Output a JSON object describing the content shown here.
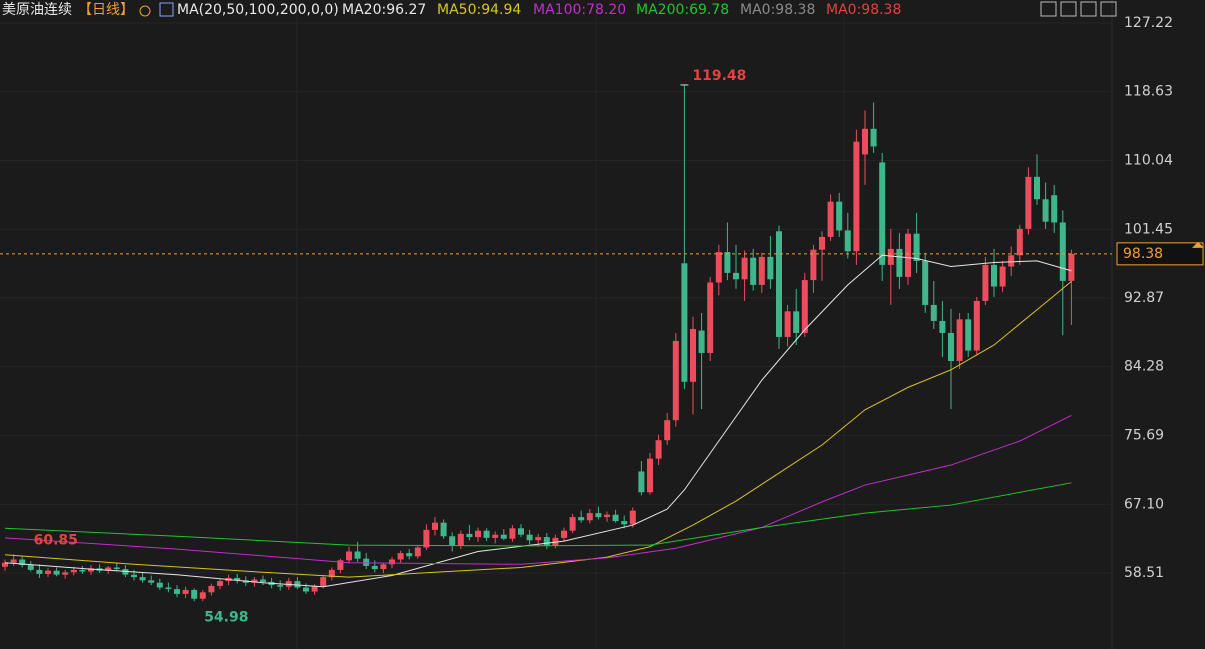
{
  "header": {
    "symbol": "美原油连续",
    "period": "【日线】",
    "ma_params": "MA(20,50,100,200,0,0)",
    "ma_readings": [
      {
        "text": "MA20:96.27",
        "color": "#e6e6e6"
      },
      {
        "text": "MA50:94.94",
        "color": "#d9c51c"
      },
      {
        "text": "MA100:78.20",
        "color": "#c42ccf"
      },
      {
        "text": "MA200:69.78",
        "color": "#22c42a"
      },
      {
        "text": "MA0:98.38",
        "color": "#8a8a8a"
      },
      {
        "text": "MA0:98.38",
        "color": "#e2433f"
      }
    ]
  },
  "chart_data": {
    "type": "candlestick",
    "ylim": [
      49.02,
      130.09
    ],
    "yticks": [
      127.22,
      118.63,
      110.04,
      101.45,
      92.87,
      84.28,
      75.69,
      {
        "value": 67.1,
        "label": "67.10"
      },
      58.51
    ],
    "up_color": "#ec4d5c",
    "down_color": "#3fb68b",
    "last_price": 98.38,
    "labels": {
      "max": 119.48,
      "start": 60.85,
      "min": 54.98
    },
    "candles": [
      [
        59.3,
        60.2,
        58.8,
        59.8
      ],
      [
        59.8,
        60.85,
        59.4,
        60.2
      ],
      [
        60.2,
        60.6,
        59.2,
        59.5
      ],
      [
        59.5,
        60.0,
        58.7,
        58.9
      ],
      [
        58.9,
        59.6,
        57.9,
        58.4
      ],
      [
        58.4,
        59.1,
        58.0,
        58.8
      ],
      [
        58.8,
        59.2,
        58.1,
        58.3
      ],
      [
        58.3,
        58.9,
        57.8,
        58.6
      ],
      [
        58.6,
        59.3,
        58.2,
        58.9
      ],
      [
        58.9,
        59.4,
        58.4,
        58.7
      ],
      [
        58.7,
        59.5,
        58.3,
        59.1
      ],
      [
        59.1,
        59.6,
        58.5,
        58.8
      ],
      [
        58.8,
        59.4,
        58.4,
        59.2
      ],
      [
        59.2,
        59.8,
        58.7,
        59.0
      ],
      [
        59.0,
        59.5,
        58.0,
        58.3
      ],
      [
        58.3,
        58.9,
        57.6,
        58.0
      ],
      [
        58.0,
        58.6,
        57.3,
        57.6
      ],
      [
        57.6,
        58.2,
        57.0,
        57.3
      ],
      [
        57.3,
        57.8,
        56.4,
        56.7
      ],
      [
        56.7,
        57.3,
        56.1,
        56.5
      ],
      [
        56.5,
        57.0,
        55.5,
        55.9
      ],
      [
        55.9,
        56.8,
        55.4,
        56.4
      ],
      [
        56.4,
        56.6,
        54.98,
        55.3
      ],
      [
        55.3,
        56.4,
        55.0,
        56.1
      ],
      [
        56.1,
        57.2,
        55.7,
        56.9
      ],
      [
        56.9,
        57.8,
        56.5,
        57.5
      ],
      [
        57.5,
        58.3,
        57.0,
        57.9
      ],
      [
        57.9,
        58.4,
        57.2,
        57.6
      ],
      [
        57.6,
        58.1,
        56.9,
        57.3
      ],
      [
        57.3,
        58.0,
        56.8,
        57.7
      ],
      [
        57.7,
        58.2,
        57.0,
        57.4
      ],
      [
        57.4,
        57.9,
        56.6,
        57.0
      ],
      [
        57.0,
        57.6,
        56.3,
        56.8
      ],
      [
        56.8,
        57.9,
        56.4,
        57.5
      ],
      [
        57.5,
        58.0,
        56.5,
        56.7
      ],
      [
        56.7,
        57.2,
        55.9,
        56.2
      ],
      [
        56.2,
        57.1,
        55.8,
        56.9
      ],
      [
        56.9,
        58.3,
        56.6,
        58.0
      ],
      [
        58.0,
        59.2,
        57.6,
        58.9
      ],
      [
        58.9,
        60.3,
        58.5,
        60.1
      ],
      [
        60.1,
        61.8,
        59.7,
        61.2
      ],
      [
        61.2,
        62.4,
        59.9,
        60.3
      ],
      [
        60.3,
        61.0,
        59.0,
        59.4
      ],
      [
        59.4,
        60.1,
        58.6,
        59.0
      ],
      [
        59.0,
        59.8,
        58.5,
        59.6
      ],
      [
        59.6,
        60.5,
        59.1,
        60.2
      ],
      [
        60.2,
        61.3,
        59.8,
        61.0
      ],
      [
        61.0,
        61.5,
        60.2,
        60.6
      ],
      [
        60.6,
        62.0,
        60.3,
        61.7
      ],
      [
        61.7,
        64.6,
        61.4,
        63.9
      ],
      [
        63.9,
        65.5,
        63.2,
        64.8
      ],
      [
        64.8,
        65.2,
        62.8,
        63.1
      ],
      [
        63.1,
        63.6,
        61.2,
        61.9
      ],
      [
        61.9,
        63.8,
        61.5,
        63.4
      ],
      [
        63.4,
        64.5,
        62.6,
        63.0
      ],
      [
        63.0,
        64.2,
        62.4,
        63.8
      ],
      [
        63.8,
        64.1,
        62.5,
        62.9
      ],
      [
        62.9,
        63.7,
        62.2,
        63.3
      ],
      [
        63.3,
        64.0,
        62.6,
        62.8
      ],
      [
        62.8,
        64.5,
        62.4,
        64.1
      ],
      [
        64.1,
        64.6,
        63.0,
        63.3
      ],
      [
        63.3,
        63.9,
        62.1,
        62.6
      ],
      [
        62.6,
        63.4,
        61.8,
        63.0
      ],
      [
        63.0,
        63.5,
        61.5,
        61.9
      ],
      [
        61.9,
        63.3,
        61.6,
        62.9
      ],
      [
        62.9,
        64.2,
        62.5,
        63.8
      ],
      [
        63.8,
        65.9,
        63.5,
        65.5
      ],
      [
        65.5,
        66.3,
        64.8,
        65.1
      ],
      [
        65.1,
        66.5,
        64.7,
        66.0
      ],
      [
        66.0,
        66.8,
        65.2,
        65.5
      ],
      [
        65.5,
        66.2,
        64.9,
        65.8
      ],
      [
        65.8,
        66.4,
        64.8,
        65.0
      ],
      [
        65.0,
        65.7,
        64.1,
        64.6
      ],
      [
        64.6,
        66.7,
        64.2,
        66.3
      ],
      [
        71.2,
        72.5,
        68.2,
        68.6
      ],
      [
        68.6,
        73.5,
        68.3,
        72.8
      ],
      [
        72.8,
        75.8,
        72.0,
        75.1
      ],
      [
        75.1,
        78.5,
        74.5,
        77.6
      ],
      [
        77.6,
        88.5,
        76.8,
        87.5
      ],
      [
        97.2,
        119.48,
        81.5,
        82.4
      ],
      [
        82.4,
        90.5,
        78.3,
        89.0
      ],
      [
        88.8,
        91.0,
        79.0,
        86.0
      ],
      [
        86.0,
        95.5,
        85.0,
        94.8
      ],
      [
        94.8,
        99.5,
        93.2,
        98.6
      ],
      [
        98.6,
        102.3,
        95.1,
        96.0
      ],
      [
        96.0,
        99.5,
        94.0,
        95.2
      ],
      [
        95.2,
        98.8,
        92.5,
        97.9
      ],
      [
        97.9,
        99.0,
        93.8,
        94.5
      ],
      [
        94.5,
        98.5,
        93.5,
        98.0
      ],
      [
        98.0,
        100.6,
        94.0,
        95.2
      ],
      [
        101.2,
        101.9,
        86.5,
        88.0
      ],
      [
        88.0,
        92.0,
        86.8,
        91.2
      ],
      [
        91.2,
        94.0,
        87.0,
        88.5
      ],
      [
        88.5,
        96.0,
        88.0,
        95.1
      ],
      [
        95.1,
        99.5,
        93.5,
        98.9
      ],
      [
        98.9,
        101.2,
        95.0,
        100.5
      ],
      [
        100.5,
        105.8,
        100.0,
        104.9
      ],
      [
        104.9,
        106.0,
        100.5,
        101.3
      ],
      [
        101.3,
        103.5,
        97.8,
        98.7
      ],
      [
        98.7,
        113.9,
        97.0,
        112.4
      ],
      [
        110.8,
        116.3,
        107.0,
        114.0
      ],
      [
        114.0,
        117.3,
        111.0,
        111.8
      ],
      [
        109.8,
        111.0,
        95.0,
        97.0
      ],
      [
        97.0,
        101.5,
        92.0,
        99.0
      ],
      [
        99.0,
        101.0,
        94.0,
        95.5
      ],
      [
        95.5,
        101.5,
        94.5,
        100.9
      ],
      [
        100.9,
        103.5,
        96.0,
        97.5
      ],
      [
        97.5,
        98.5,
        91.0,
        92.0
      ],
      [
        92.0,
        95.0,
        89.0,
        90.0
      ],
      [
        90.0,
        92.5,
        85.5,
        88.5
      ],
      [
        88.5,
        91.5,
        79.0,
        85.0
      ],
      [
        85.0,
        91.0,
        84.0,
        90.2
      ],
      [
        90.2,
        91.0,
        85.5,
        86.3
      ],
      [
        86.3,
        93.0,
        85.8,
        92.5
      ],
      [
        92.5,
        98.0,
        92.0,
        97.0
      ],
      [
        97.0,
        99.0,
        93.0,
        94.3
      ],
      [
        94.3,
        97.5,
        93.6,
        96.8
      ],
      [
        96.8,
        99.3,
        95.6,
        98.2
      ],
      [
        98.2,
        102.0,
        97.0,
        101.5
      ],
      [
        101.5,
        109.2,
        100.8,
        108.0
      ],
      [
        108.0,
        110.8,
        104.5,
        105.2
      ],
      [
        105.2,
        107.3,
        101.5,
        102.4
      ],
      [
        105.7,
        107.0,
        101.0,
        102.3
      ],
      [
        102.3,
        103.8,
        88.2,
        95.0
      ],
      [
        95.0,
        98.9,
        89.5,
        98.38
      ]
    ],
    "ma_lines": [
      {
        "color": "#e6e6e6",
        "x": [
          0,
          10,
          20,
          30,
          37,
          45,
          55,
          65,
          73,
          77,
          79,
          83,
          88,
          93,
          98,
          102,
          106,
          110,
          115,
          120,
          124
        ],
        "values": [
          59.8,
          59.0,
          58.3,
          57.3,
          56.8,
          58.2,
          61.2,
          62.5,
          64.5,
          66.5,
          68.9,
          75.0,
          82.6,
          88.9,
          94.5,
          98.2,
          97.8,
          96.8,
          97.3,
          97.5,
          96.27
        ]
      },
      {
        "color": "#d9c51c",
        "x": [
          0,
          15,
          30,
          40,
          50,
          60,
          70,
          75,
          80,
          85,
          90,
          95,
          100,
          105,
          110,
          115,
          120,
          124
        ],
        "values": [
          60.8,
          59.6,
          58.6,
          58.0,
          58.6,
          59.2,
          60.5,
          61.8,
          64.5,
          67.5,
          71.0,
          74.5,
          78.9,
          81.7,
          83.9,
          87.0,
          91.4,
          94.94
        ]
      },
      {
        "color": "#c42ccf",
        "x": [
          0,
          20,
          40,
          60,
          70,
          78,
          88,
          95,
          100,
          110,
          118,
          124
        ],
        "values": [
          62.9,
          61.5,
          59.8,
          59.6,
          60.4,
          61.6,
          64.2,
          67.4,
          69.5,
          72.0,
          75.0,
          78.2
        ]
      },
      {
        "color": "#22c42a",
        "x": [
          0,
          20,
          40,
          60,
          75,
          88,
          100,
          110,
          124
        ],
        "values": [
          64.1,
          63.1,
          62.0,
          61.9,
          62.0,
          64.2,
          66.0,
          67.0,
          69.78
        ]
      }
    ]
  }
}
